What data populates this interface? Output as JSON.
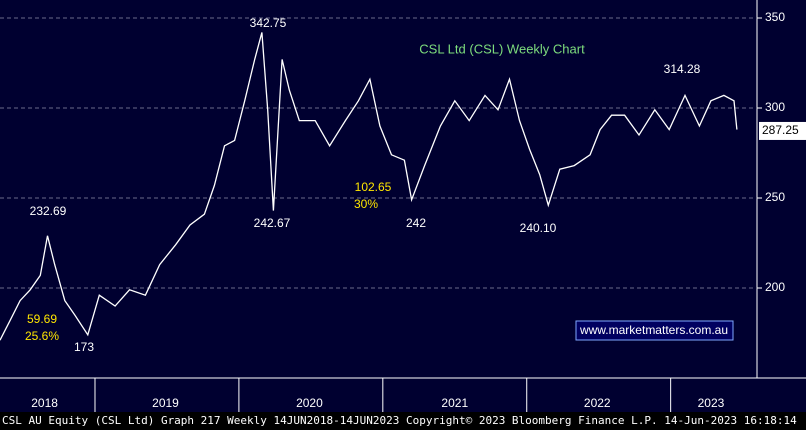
{
  "chart_data": {
    "type": "line",
    "title": "CSL Ltd (CSL) Weekly Chart",
    "x": [
      2018.34,
      2018.41,
      2018.48,
      2018.55,
      2018.62,
      2018.67,
      2018.72,
      2018.79,
      2018.86,
      2018.95,
      2019.03,
      2019.14,
      2019.24,
      2019.35,
      2019.45,
      2019.56,
      2019.66,
      2019.76,
      2019.83,
      2019.9,
      2019.97,
      2020.04,
      2020.11,
      2020.16,
      2020.2,
      2020.24,
      2020.3,
      2020.35,
      2020.42,
      2020.53,
      2020.63,
      2020.74,
      2020.83,
      2020.91,
      2020.98,
      2021.06,
      2021.15,
      2021.2,
      2021.29,
      2021.4,
      2021.5,
      2021.6,
      2021.71,
      2021.8,
      2021.88,
      2021.95,
      2022.02,
      2022.09,
      2022.15,
      2022.23,
      2022.33,
      2022.44,
      2022.51,
      2022.59,
      2022.68,
      2022.78,
      2022.89,
      2022.99,
      2023.1,
      2023.2,
      2023.28,
      2023.37,
      2023.44,
      2023.46
    ],
    "values": [
      171,
      182,
      193,
      199,
      207,
      229,
      213,
      193,
      185,
      174,
      196,
      190,
      199,
      196,
      213,
      224,
      235,
      241,
      257,
      279,
      282,
      304,
      327,
      342,
      299,
      243,
      327,
      310,
      293,
      293,
      279,
      293,
      304,
      316,
      290,
      274,
      271,
      249,
      268,
      290,
      304,
      293,
      307,
      299,
      316,
      293,
      277,
      263,
      246,
      266,
      268,
      274,
      288,
      296,
      296,
      285,
      299,
      288,
      307,
      290,
      304,
      307,
      304,
      288
    ],
    "color": "#ffffff",
    "xlim": [
      2018.34,
      2023.6
    ],
    "xticks": [
      {
        "value": 2018.65,
        "label": "2018"
      },
      {
        "value": 2019.49,
        "label": "2019"
      },
      {
        "value": 2020.49,
        "label": "2020"
      },
      {
        "value": 2021.5,
        "label": "2021"
      },
      {
        "value": 2022.49,
        "label": "2022"
      },
      {
        "value": 2023.28,
        "label": "2023"
      }
    ],
    "year_separators": [
      2019,
      2020,
      2021,
      2022,
      2023
    ],
    "ylim": [
      150,
      360
    ],
    "yticks": [
      200,
      250,
      300,
      350
    ],
    "grid": true,
    "last_price": 287.25,
    "annotations": [
      "342.75",
      "232.69",
      "242.67",
      "242",
      "240.10",
      "314.28",
      "173"
    ],
    "yellow_annotations": [
      "59.69",
      "25.6%",
      "102.65",
      "30%"
    ],
    "link": "www.marketmatters.com.au",
    "footer": "CSL AU Equity (CSL Ltd) Graph 217  Weekly 14JUN2018-14JUN2023   Copyright© 2023 Bloomberg Finance L.P.   14-Jun-2023 16:18:14"
  }
}
